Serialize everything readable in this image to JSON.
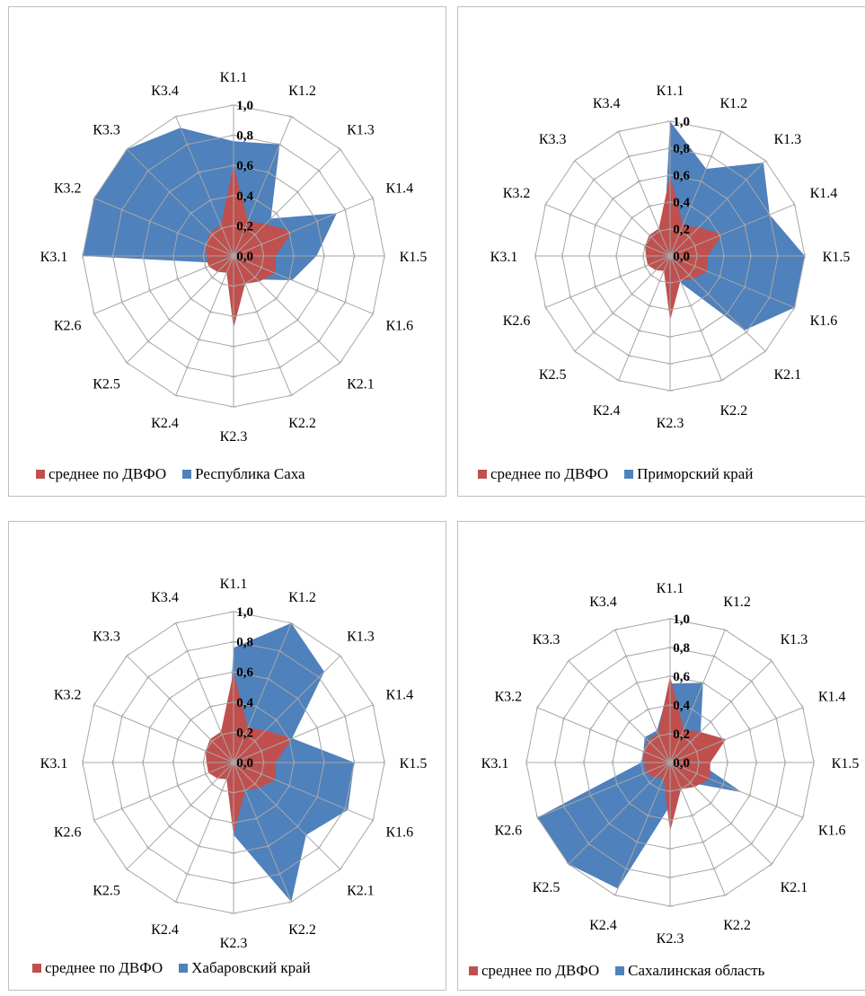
{
  "colors": {
    "avg": "#c0504d",
    "region": "#4f81bd",
    "grid": "#a6a6a6"
  },
  "ticks": [
    "0,0",
    "0,2",
    "0,4",
    "0,6",
    "0,8",
    "1,0"
  ],
  "chart_data": [
    {
      "type": "radar",
      "categories": [
        "К1.1",
        "К1.2",
        "К1.3",
        "К1.4",
        "К1.5",
        "К1.6",
        "К2.1",
        "К2.2",
        "К2.3",
        "К2.4",
        "К2.5",
        "К2.6",
        "К3.1",
        "К3.2",
        "К3.3",
        "К3.4"
      ],
      "rlim": [
        0,
        1
      ],
      "legend_position": "bottom",
      "series": [
        {
          "name": "Республика Саха",
          "values": [
            0.76,
            0.8,
            0.35,
            0.74,
            0.55,
            0.42,
            0.22,
            0.18,
            0.08,
            0.12,
            0.12,
            0.12,
            1.0,
            1.0,
            1.0,
            0.92
          ]
        },
        {
          "name": "среднее по ДВФО",
          "values": [
            0.6,
            0.25,
            0.3,
            0.42,
            0.28,
            0.3,
            0.24,
            0.2,
            0.48,
            0.12,
            0.15,
            0.18,
            0.18,
            0.2,
            0.22,
            0.22
          ]
        }
      ]
    },
    {
      "type": "radar",
      "categories": [
        "К1.1",
        "К1.2",
        "К1.3",
        "К1.4",
        "К1.5",
        "К1.6",
        "К2.1",
        "К2.2",
        "К2.3",
        "К2.4",
        "К2.5",
        "К2.6",
        "К3.1",
        "К3.2",
        "К3.3",
        "К3.4"
      ],
      "rlim": [
        0,
        1
      ],
      "legend_position": "bottom",
      "series": [
        {
          "name": "Приморский край",
          "values": [
            1.0,
            0.7,
            0.98,
            0.8,
            1.0,
            1.0,
            0.78,
            0.22,
            0.08,
            0.08,
            0.08,
            0.08,
            0.12,
            0.12,
            0.12,
            0.12
          ]
        },
        {
          "name": "среднее по ДВФО",
          "values": [
            0.6,
            0.25,
            0.3,
            0.42,
            0.28,
            0.3,
            0.24,
            0.2,
            0.48,
            0.12,
            0.15,
            0.18,
            0.18,
            0.2,
            0.22,
            0.22
          ]
        }
      ]
    },
    {
      "type": "radar",
      "categories": [
        "К1.1",
        "К1.2",
        "К1.3",
        "К1.4",
        "К1.5",
        "К1.6",
        "К2.1",
        "К2.2",
        "К2.3",
        "К2.4",
        "К2.5",
        "К2.6",
        "К3.1",
        "К3.2",
        "К3.3",
        "К3.4"
      ],
      "rlim": [
        0,
        1
      ],
      "legend_position": "bottom",
      "series": [
        {
          "name": "Хабаровский край",
          "values": [
            0.76,
            1.0,
            0.85,
            0.42,
            0.8,
            0.82,
            0.68,
            1.0,
            0.48,
            0.12,
            0.1,
            0.12,
            0.18,
            0.1,
            0.1,
            0.1
          ]
        },
        {
          "name": "среднее по ДВФО",
          "values": [
            0.6,
            0.25,
            0.3,
            0.42,
            0.28,
            0.3,
            0.24,
            0.2,
            0.48,
            0.12,
            0.15,
            0.18,
            0.18,
            0.2,
            0.22,
            0.22
          ]
        }
      ]
    },
    {
      "type": "radar",
      "categories": [
        "К1.1",
        "К1.2",
        "К1.3",
        "К1.4",
        "К1.5",
        "К1.6",
        "К2.1",
        "К2.2",
        "К2.3",
        "К2.4",
        "К2.5",
        "К2.6",
        "К3.1",
        "К3.2",
        "К3.3",
        "К3.4"
      ],
      "rlim": [
        0,
        1
      ],
      "legend_position": "bottom",
      "series": [
        {
          "name": "Сахалинская область",
          "values": [
            0.55,
            0.6,
            0.3,
            0.42,
            0.2,
            0.54,
            0.2,
            0.1,
            0.3,
            0.95,
            1.0,
            1.0,
            0.2,
            0.2,
            0.25,
            0.24
          ]
        },
        {
          "name": "среднее по ДВФО",
          "values": [
            0.6,
            0.25,
            0.3,
            0.42,
            0.28,
            0.3,
            0.24,
            0.2,
            0.48,
            0.12,
            0.15,
            0.18,
            0.18,
            0.2,
            0.22,
            0.22
          ]
        }
      ]
    }
  ]
}
